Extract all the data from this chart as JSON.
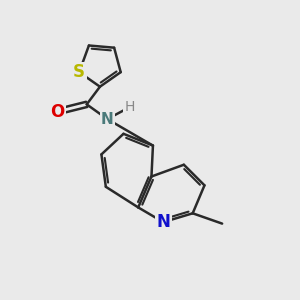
{
  "background_color": "#eaeaea",
  "bond_color": "#2a2a2a",
  "bond_width": 1.8,
  "atoms": {
    "S": {
      "color": "#b8b800",
      "fontsize": 12,
      "fontweight": "bold"
    },
    "O": {
      "color": "#dd0000",
      "fontsize": 12,
      "fontweight": "bold"
    },
    "N_amide": {
      "color": "#4a7a7a",
      "fontsize": 11,
      "fontweight": "bold"
    },
    "H": {
      "color": "#888888",
      "fontsize": 10,
      "fontweight": "normal"
    },
    "N_quin": {
      "color": "#1111cc",
      "fontsize": 12,
      "fontweight": "bold"
    }
  },
  "figsize": [
    3.0,
    3.0
  ],
  "dpi": 100
}
